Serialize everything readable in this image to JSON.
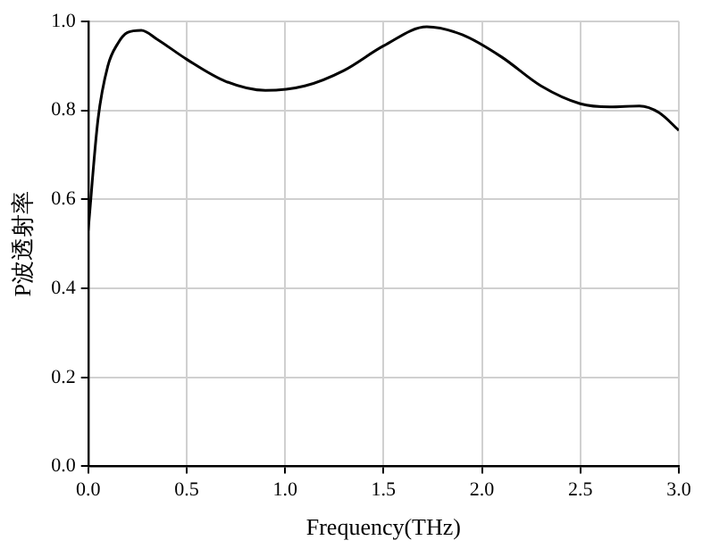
{
  "chart_data": {
    "type": "line",
    "xlabel": "Frequency(THz)",
    "ylabel": "P波透射率",
    "x": [
      0,
      0.05,
      0.1,
      0.15,
      0.2,
      0.27,
      0.35,
      0.5,
      0.7,
      0.9,
      1.1,
      1.3,
      1.5,
      1.72,
      1.9,
      2.1,
      2.3,
      2.5,
      2.65,
      2.8,
      2.9,
      3.0
    ],
    "series": [
      {
        "color": "#000000",
        "values": [
          0.53,
          0.78,
          0.9,
          0.95,
          0.975,
          0.98,
          0.96,
          0.915,
          0.865,
          0.845,
          0.855,
          0.89,
          0.945,
          0.988,
          0.97,
          0.92,
          0.855,
          0.815,
          0.808,
          0.81,
          0.795,
          0.755
        ]
      }
    ],
    "xlim": [
      0,
      3
    ],
    "xticks": [
      {
        "value": 0,
        "label": "0.0"
      },
      0.5,
      {
        "value": 1,
        "label": "1.0"
      },
      1.5,
      {
        "value": 2,
        "label": "2.0"
      },
      2.5,
      {
        "value": 3,
        "label": "3.0"
      }
    ],
    "ylim": [
      0,
      1
    ],
    "yticks": [
      {
        "value": 0,
        "label": "0.0"
      },
      0.2,
      0.4,
      0.6,
      0.8,
      {
        "value": 1,
        "label": "1.0"
      }
    ],
    "grid": true,
    "legend": false,
    "marker": "none",
    "line_style": "solid"
  }
}
